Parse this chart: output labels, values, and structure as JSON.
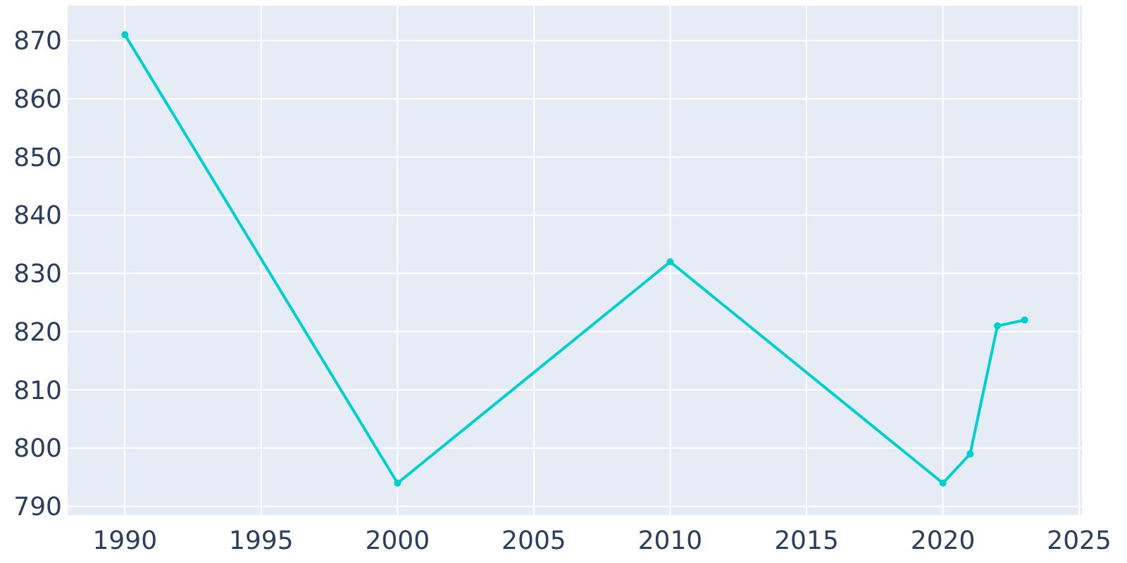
{
  "chart_data": {
    "type": "line",
    "x": [
      1990,
      2000,
      2010,
      2020,
      2021,
      2022,
      2023
    ],
    "series": [
      {
        "color": "#00cfd0",
        "values": [
          871,
          794,
          832,
          794,
          799,
          821,
          822
        ]
      }
    ],
    "xlim": [
      1987.9,
      2025.1
    ],
    "xticks": [
      1990,
      1995,
      2000,
      2005,
      2010,
      2015,
      2020,
      2025
    ],
    "ylim": [
      788.5,
      876
    ],
    "yticks": [
      790,
      800,
      810,
      820,
      830,
      840,
      850,
      860,
      870
    ],
    "grid": true,
    "marker": "circle",
    "line_style": "solid"
  }
}
